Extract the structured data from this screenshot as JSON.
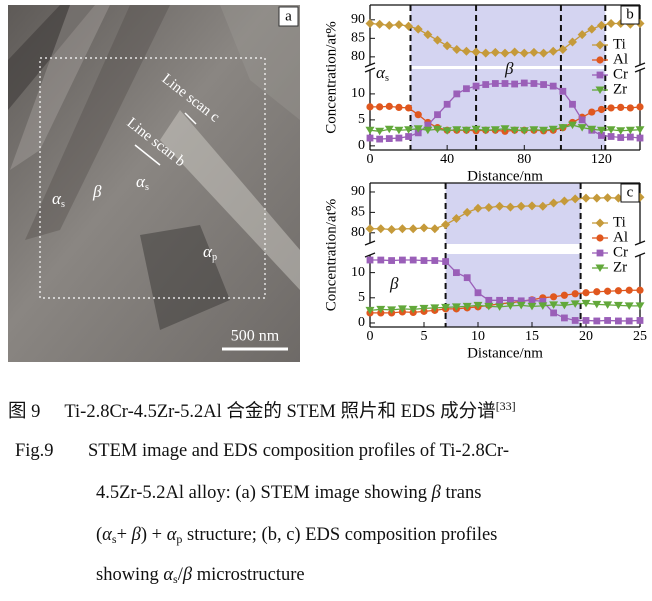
{
  "image": {
    "label": "a",
    "annotations": [
      {
        "text": "Line scan c"
      },
      {
        "text": "Line scan b"
      },
      {
        "text": "α",
        "sub": "s"
      },
      {
        "text": "β"
      },
      {
        "text": "α",
        "sub": "s"
      },
      {
        "text": "α",
        "sub": "p"
      }
    ],
    "scale_bar": "500 nm"
  },
  "chart_data": [
    {
      "type": "line",
      "panel_label": "b",
      "x_label": "Distance/nm",
      "y_label": "Concentration/at%",
      "x": [
        0,
        5,
        10,
        15,
        20,
        25,
        30,
        35,
        40,
        45,
        50,
        55,
        60,
        65,
        70,
        75,
        80,
        85,
        90,
        95,
        100,
        105,
        110,
        115,
        120,
        125,
        130,
        135,
        140
      ],
      "xlim": [
        0,
        140
      ],
      "xticks": [
        0,
        40,
        80,
        120
      ],
      "ylim": [
        -0.8,
        14.6
      ],
      "yticks": [
        0,
        5,
        10
      ],
      "ybreak": {
        "ylim": [
          77.8,
          94
        ],
        "yticks": [
          80,
          85,
          90
        ]
      },
      "shaded_spans": [
        [
          21,
          122
        ]
      ],
      "dashed_lines": [
        21,
        55,
        99,
        122
      ],
      "annotations": [
        {
          "text": "α",
          "sub": "s"
        },
        {
          "text": "β"
        }
      ],
      "series": [
        {
          "name": "Ti",
          "color": "#c59a3a",
          "marker": "diamond",
          "values": [
            89,
            88.8,
            88.5,
            88.7,
            88.3,
            87.5,
            86,
            84.5,
            83,
            82,
            81.5,
            81.3,
            81,
            81.2,
            81,
            81.3,
            81,
            81.2,
            81,
            81.5,
            82,
            84,
            86,
            87.5,
            88.5,
            89,
            89,
            88.8,
            89
          ]
        },
        {
          "name": "Al",
          "color": "#e0571e",
          "marker": "circle",
          "values": [
            7.5,
            7.5,
            7.6,
            7.4,
            7.3,
            6,
            4.5,
            3.5,
            3,
            3,
            3,
            2.9,
            3,
            3,
            2.8,
            3,
            3,
            3,
            2.9,
            3,
            3.5,
            4.5,
            5.5,
            6.5,
            7,
            7.3,
            7.4,
            7.3,
            7.5
          ]
        },
        {
          "name": "Cr",
          "color": "#9a5fb8",
          "marker": "square",
          "values": [
            1.5,
            1.3,
            1.4,
            1.5,
            1.8,
            2.5,
            4,
            6,
            8,
            10,
            11,
            11.5,
            11.8,
            12,
            12,
            11.9,
            12.1,
            12,
            11.8,
            11.5,
            10.5,
            8,
            5,
            3,
            2,
            1.8,
            1.6,
            1.7,
            1.5
          ]
        },
        {
          "name": "Zr",
          "color": "#62a83a",
          "marker": "triangle",
          "values": [
            3,
            2.8,
            3.2,
            3,
            3.1,
            3.3,
            3,
            3.2,
            2.9,
            3.1,
            3,
            3.2,
            3,
            3.1,
            3.3,
            3,
            2.9,
            3.1,
            3,
            3.2,
            3.5,
            4,
            3.5,
            3.2,
            3,
            3.1,
            2.9,
            3,
            3.1
          ]
        }
      ]
    },
    {
      "type": "line",
      "panel_label": "c",
      "x_label": "Distance/nm",
      "y_label": "Concentration/at%",
      "x": [
        0,
        1,
        2,
        3,
        4,
        5,
        6,
        7,
        8,
        9,
        10,
        11,
        12,
        13,
        14,
        15,
        16,
        17,
        18,
        19,
        20,
        21,
        22,
        23,
        24,
        25
      ],
      "xlim": [
        0,
        25
      ],
      "xticks": [
        0,
        5,
        10,
        15,
        20,
        25
      ],
      "ylim": [
        -0.8,
        13.5
      ],
      "yticks": [
        0,
        5,
        10
      ],
      "ybreak": {
        "ylim": [
          77.5,
          92.2
        ],
        "yticks": [
          80,
          85,
          90
        ]
      },
      "shaded_spans": [
        [
          7,
          19.5
        ]
      ],
      "dashed_lines": [
        7,
        19.5
      ],
      "annotations": [
        {
          "text": "β"
        }
      ],
      "series": [
        {
          "name": "Ti",
          "color": "#c59a3a",
          "marker": "diamond",
          "values": [
            81,
            81,
            80.8,
            81,
            81,
            81.2,
            81,
            82,
            83.5,
            85,
            86,
            86.2,
            86.5,
            86.3,
            86.5,
            86.6,
            86.5,
            87.3,
            87.8,
            88.3,
            88.5,
            88.5,
            88.6,
            88.5,
            88.6,
            88.7
          ]
        },
        {
          "name": "Al",
          "color": "#e0571e",
          "marker": "circle",
          "values": [
            2,
            2,
            2,
            2.2,
            2.1,
            2.3,
            2.5,
            2.8,
            2.8,
            3,
            3.2,
            3.5,
            3.8,
            4,
            4.3,
            4.6,
            5,
            5.2,
            5.5,
            5.8,
            6,
            6.2,
            6.3,
            6.4,
            6.5,
            6.5
          ]
        },
        {
          "name": "Cr",
          "color": "#9a5fb8",
          "marker": "square",
          "values": [
            12.5,
            12.5,
            12.4,
            12.5,
            12.5,
            12.4,
            12.4,
            12.2,
            10,
            9,
            6,
            4.5,
            4.5,
            4.5,
            4.4,
            4.5,
            4.3,
            2,
            1,
            0.5,
            0.5,
            0.4,
            0.5,
            0.4,
            0.4,
            0.5
          ]
        },
        {
          "name": "Zr",
          "color": "#62a83a",
          "marker": "triangle",
          "values": [
            2.5,
            2.7,
            2.6,
            2.8,
            2.7,
            2.9,
            3,
            3.1,
            3.2,
            3.3,
            3.5,
            3.3,
            3.2,
            3.4,
            3.5,
            3.3,
            3.4,
            3.6,
            3.5,
            3.8,
            3.9,
            3.7,
            3.6,
            3.5,
            3.4,
            3.4
          ]
        }
      ]
    }
  ],
  "caption": {
    "cn": {
      "label": "图 9",
      "text": "Ti-2.8Cr-4.5Zr-5.2Al 合金的 STEM 照片和 EDS 成分谱",
      "ref": "[33]"
    },
    "en": {
      "label": "Fig.9",
      "lines": [
        [
          {
            "text": "STEM image and EDS composition profiles of Ti-2.8Cr-"
          }
        ],
        [
          {
            "text": "4.5Zr-5.2Al alloy: (a) STEM image showing "
          },
          {
            "text": "β",
            "style": "italic"
          },
          {
            "text": " trans"
          }
        ],
        [
          {
            "text": "("
          },
          {
            "text": "α",
            "style": "italic"
          },
          {
            "text": "s",
            "style": "sub"
          },
          {
            "text": "+ "
          },
          {
            "text": "β",
            "style": "italic"
          },
          {
            "text": ") + "
          },
          {
            "text": "α",
            "style": "italic"
          },
          {
            "text": "p",
            "style": "sub"
          },
          {
            "text": " structure; (b, c) EDS composition profiles"
          }
        ],
        [
          {
            "text": "showing "
          },
          {
            "text": "α",
            "style": "italic"
          },
          {
            "text": "s",
            "style": "sub"
          },
          {
            "text": "/"
          },
          {
            "text": "β",
            "style": "italic"
          },
          {
            "text": " microstructure"
          }
        ]
      ]
    }
  }
}
